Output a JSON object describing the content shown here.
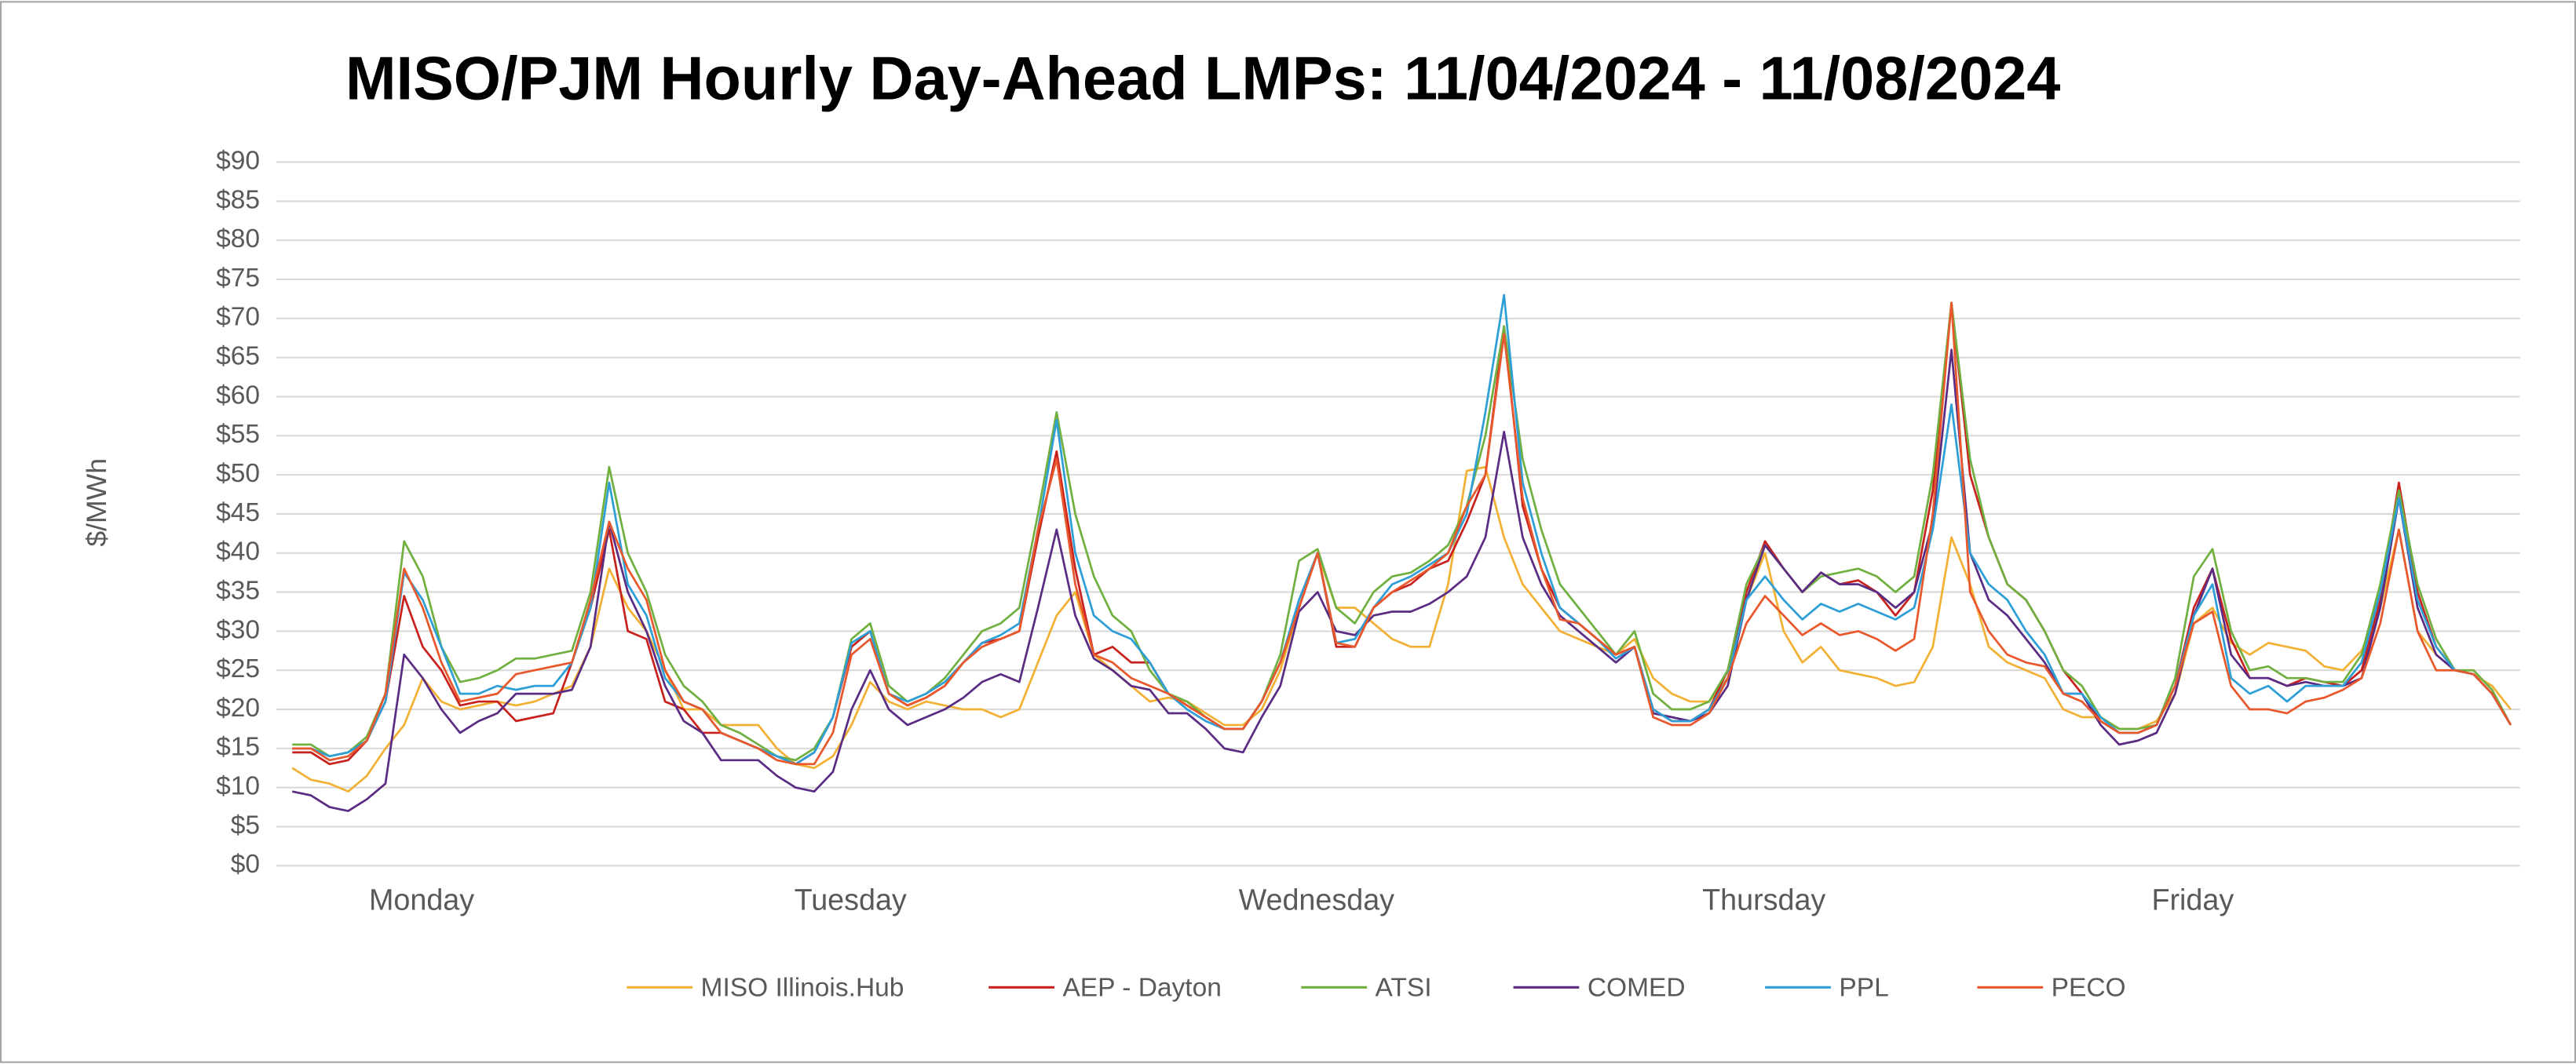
{
  "chart_data": {
    "type": "line",
    "title": "MISO/PJM Hourly Day-Ahead LMPs: 11/04/2024 - 11/08/2024",
    "y_label": "$/MWh",
    "categories": [
      null,
      null,
      null,
      null,
      null,
      "Monday",
      null,
      null,
      null,
      null,
      null,
      null,
      null,
      null,
      null,
      null,
      null,
      null,
      null,
      null,
      null,
      null,
      null,
      null,
      null,
      null,
      null,
      null,
      "Tuesday",
      null,
      null,
      null,
      null,
      null,
      null,
      null,
      null,
      null,
      null,
      null,
      null,
      null,
      null,
      null,
      null,
      null,
      null,
      null,
      null,
      null,
      null,
      null,
      null,
      "Wednesday",
      null,
      null,
      null,
      null,
      null,
      null,
      null,
      null,
      null,
      null,
      null,
      null,
      null,
      null,
      null,
      null,
      null,
      null,
      null,
      null,
      null,
      null,
      null,
      "Thursday",
      null,
      null,
      null,
      null,
      null,
      null,
      null,
      null,
      null,
      null,
      null,
      null,
      null,
      null,
      null,
      null,
      null,
      null,
      null,
      null,
      null,
      null,
      "Friday",
      null,
      null,
      null,
      null,
      null,
      null,
      null,
      null,
      null,
      null,
      null,
      null,
      null,
      null,
      null,
      null,
      null,
      null,
      null
    ],
    "ylim": [
      0,
      90
    ],
    "yticks": [
      {
        "value": 0,
        "label": "$0"
      },
      {
        "value": 5,
        "label": "$5"
      },
      {
        "value": 10,
        "label": "$10"
      },
      {
        "value": 15,
        "label": "$15"
      },
      {
        "value": 20,
        "label": "$20"
      },
      {
        "value": 25,
        "label": "$25"
      },
      {
        "value": 30,
        "label": "$30"
      },
      {
        "value": 35,
        "label": "$35"
      },
      {
        "value": 40,
        "label": "$40"
      },
      {
        "value": 45,
        "label": "$45"
      },
      {
        "value": 50,
        "label": "$50"
      },
      {
        "value": 55,
        "label": "$55"
      },
      {
        "value": 60,
        "label": "$60"
      },
      {
        "value": 65,
        "label": "$65"
      },
      {
        "value": 70,
        "label": "$70"
      },
      {
        "value": 75,
        "label": "$75"
      },
      {
        "value": 80,
        "label": "$80"
      },
      {
        "value": 85,
        "label": "$85"
      },
      {
        "value": 90,
        "label": "$90"
      }
    ],
    "grid": true,
    "legend": "bottom",
    "series": [
      {
        "name": "MISO Illinois.Hub",
        "color": "#f2b134",
        "values": [
          12.5,
          11,
          10.5,
          9.5,
          11.5,
          15,
          18,
          24,
          21,
          20,
          20.5,
          21,
          20.5,
          21,
          22,
          23,
          28,
          38,
          33,
          30,
          25,
          20,
          20,
          18,
          18,
          18,
          15,
          13,
          12.5,
          14,
          18,
          23.5,
          21,
          20,
          21,
          20.5,
          20,
          20,
          19,
          20,
          26,
          32,
          35,
          27,
          25,
          23,
          21,
          21.5,
          21,
          19.5,
          18,
          18,
          20,
          25,
          33,
          40,
          33,
          33,
          31,
          29,
          28,
          28,
          36,
          50.5,
          51,
          42,
          36,
          33,
          30,
          29,
          28,
          27,
          29,
          24,
          22,
          21,
          21,
          24,
          34,
          40,
          30,
          26,
          28,
          25,
          24.5,
          24,
          23,
          23.5,
          28,
          42,
          36,
          28,
          26,
          25,
          24,
          20,
          19,
          19,
          17.5,
          17.5,
          18.5,
          22,
          31,
          33,
          28.5,
          27,
          28.5,
          28,
          27.5,
          25.5,
          25,
          27.5,
          33,
          43,
          30,
          27,
          25,
          24.5,
          23,
          20
        ]
      },
      {
        "name": "AEP - Dayton",
        "color": "#c8221e",
        "values": [
          14.5,
          14.5,
          13,
          13.5,
          16,
          21,
          34.5,
          28,
          25,
          20.5,
          21,
          21,
          18.5,
          19,
          19.5,
          26,
          33,
          43,
          30,
          29,
          21,
          20,
          17,
          17,
          16,
          15,
          14,
          13,
          14.5,
          19,
          28,
          30,
          22,
          20.5,
          21.5,
          23,
          26,
          28.5,
          29,
          30,
          42,
          53,
          38,
          27,
          28,
          26,
          26,
          22,
          20.5,
          19,
          17.5,
          17.5,
          21,
          26,
          33,
          40,
          28,
          28,
          33,
          35,
          36,
          38,
          39,
          44,
          50,
          69,
          46,
          38,
          33,
          31,
          29,
          27,
          28,
          20,
          18.5,
          18.5,
          20,
          25,
          35,
          41.5,
          38,
          35,
          37.5,
          36,
          36.5,
          35,
          32,
          35,
          48,
          72,
          50,
          42,
          36,
          34,
          30,
          25,
          22,
          18.5,
          17,
          17,
          18,
          23,
          33,
          38,
          29,
          24,
          24,
          23,
          24,
          23.5,
          23,
          25,
          34,
          49,
          35,
          28,
          25,
          24.5,
          22,
          18
        ]
      },
      {
        "name": "ATSI",
        "color": "#70b040",
        "values": [
          15.5,
          15.5,
          14,
          14.5,
          16.5,
          22,
          41.5,
          37,
          28,
          23.5,
          24,
          25,
          26.5,
          26.5,
          27,
          27.5,
          35,
          51,
          40,
          35,
          27,
          23,
          21,
          18,
          17,
          15.5,
          14,
          13.5,
          15,
          19,
          29,
          31,
          23,
          21,
          22,
          24,
          27,
          30,
          31,
          33,
          45,
          58,
          45,
          37,
          32,
          30,
          25,
          22,
          21,
          19,
          17.5,
          17.5,
          21,
          27,
          39,
          40.5,
          33,
          31,
          35,
          37,
          37.5,
          39,
          41,
          46,
          55,
          69,
          52,
          43,
          36,
          33,
          30,
          27,
          30,
          22,
          20,
          20,
          21,
          25,
          36,
          41,
          38,
          35,
          37,
          37.5,
          38,
          37,
          35,
          37,
          50,
          72,
          52,
          42,
          36,
          34,
          30,
          25,
          23,
          19,
          17.5,
          17.5,
          18,
          24,
          37,
          40.5,
          30,
          25,
          25.5,
          24,
          24,
          23.5,
          23.5,
          27,
          36,
          48,
          36,
          29,
          25,
          25,
          22.5,
          18
        ]
      },
      {
        "name": "COMED",
        "color": "#5b2c83",
        "values": [
          9.5,
          9,
          7.5,
          7,
          8.5,
          10.5,
          27,
          24,
          20,
          17,
          18.5,
          19.5,
          22,
          22,
          22,
          22.5,
          28,
          44,
          35,
          30,
          23,
          18.5,
          17,
          13.5,
          13.5,
          13.5,
          11.5,
          10,
          9.5,
          12,
          20,
          25,
          20,
          18,
          19,
          20,
          21.5,
          23.5,
          24.5,
          23.5,
          33,
          43,
          32,
          26.5,
          25,
          23,
          22.5,
          19.5,
          19.5,
          17.5,
          15,
          14.5,
          19,
          23,
          32.5,
          35,
          30,
          29.5,
          32,
          32.5,
          32.5,
          33.5,
          35,
          37,
          42,
          55.5,
          42,
          36,
          32,
          30,
          28,
          26,
          28,
          19.5,
          19,
          18.5,
          19.5,
          23,
          34,
          41,
          38,
          35,
          37.5,
          36,
          36,
          35,
          33,
          35,
          44,
          66,
          40,
          34,
          32,
          29,
          26,
          22,
          22,
          18,
          15.5,
          16,
          17,
          22,
          32,
          38,
          27,
          24,
          24,
          23,
          23.5,
          23,
          23,
          24,
          33,
          47,
          33,
          27,
          25,
          24.5,
          22,
          18
        ]
      },
      {
        "name": "PPL",
        "color": "#2e9fd6",
        "values": [
          15,
          15,
          14,
          14.5,
          16,
          21,
          37.5,
          34,
          28,
          22,
          22,
          23,
          22.5,
          23,
          23,
          26,
          33,
          49,
          36,
          32,
          24,
          21,
          20,
          17,
          16,
          15,
          14,
          13,
          14.5,
          19,
          28.5,
          30,
          22,
          21,
          22,
          23.5,
          26,
          28.5,
          29.5,
          31,
          43,
          57,
          40,
          32,
          30,
          29,
          26,
          22,
          20,
          18.5,
          17.5,
          17.5,
          21,
          26,
          34,
          40,
          28.5,
          29,
          33,
          36,
          37,
          38.5,
          40,
          45,
          58,
          73,
          49,
          40,
          33,
          31,
          29,
          26.5,
          28,
          20,
          18.5,
          18.5,
          20,
          24,
          34,
          37,
          34,
          31.5,
          33.5,
          32.5,
          33.5,
          32.5,
          31.5,
          33,
          43,
          59,
          40,
          36,
          34,
          30,
          27,
          22,
          22,
          19,
          17,
          17,
          18,
          23,
          32,
          36,
          24,
          22,
          23,
          21,
          23,
          23,
          23,
          26,
          35,
          47,
          34,
          28,
          25,
          24.5,
          22,
          18
        ]
      },
      {
        "name": "PECO",
        "color": "#e8582c",
        "values": [
          15,
          15,
          13.5,
          14,
          16,
          22,
          38,
          33,
          26,
          21,
          21.5,
          22,
          24.5,
          25,
          25.5,
          26,
          34,
          44,
          38,
          34,
          25,
          21,
          20,
          17,
          16,
          15,
          13.5,
          13,
          13,
          17,
          27,
          29,
          22,
          20.5,
          21.5,
          23,
          26,
          28,
          29,
          30,
          43,
          52,
          36,
          27,
          26,
          24,
          23,
          22,
          20.5,
          19,
          17.5,
          17.5,
          21,
          26,
          33,
          40,
          28.5,
          28,
          33,
          35,
          36.5,
          38,
          40,
          46,
          50,
          68,
          47,
          38,
          31.5,
          31,
          29,
          27,
          28,
          19,
          18,
          18,
          19.5,
          24,
          31,
          34.5,
          32,
          29.5,
          31,
          29.5,
          30,
          29,
          27.5,
          29,
          45,
          72,
          35,
          30,
          27,
          26,
          25.5,
          22,
          21,
          18.5,
          17,
          17,
          18,
          23,
          31,
          32.5,
          23,
          20,
          20,
          19.5,
          21,
          21.5,
          22.5,
          24,
          31,
          43,
          30,
          25,
          25,
          24.5,
          22,
          18
        ]
      }
    ]
  }
}
